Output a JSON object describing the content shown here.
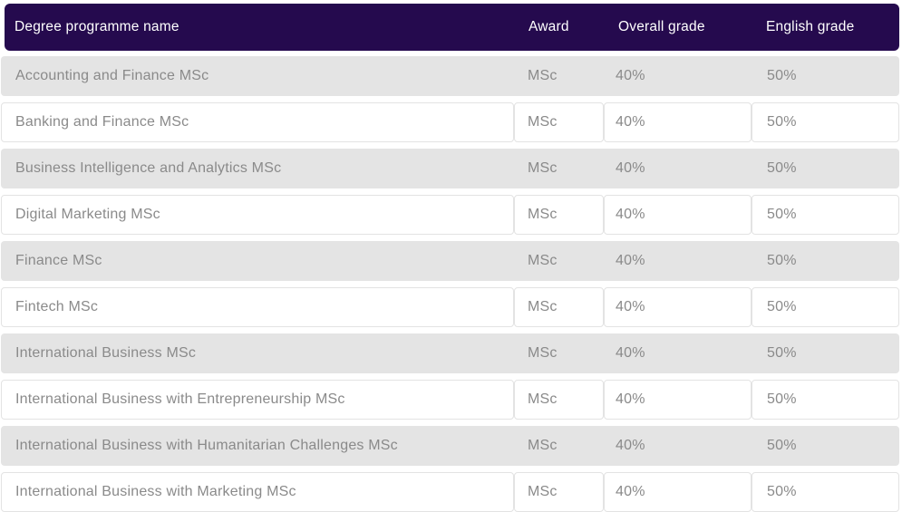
{
  "header": {
    "columns": {
      "programme": "Degree programme name",
      "award": "Award",
      "overall_grade": "Overall grade",
      "english_grade": "English grade"
    }
  },
  "rows": [
    {
      "programme": "Accounting and Finance MSc",
      "award": "MSc",
      "overall_grade": "40%",
      "english_grade": "50%"
    },
    {
      "programme": "Banking and Finance MSc",
      "award": "MSc",
      "overall_grade": "40%",
      "english_grade": "50%"
    },
    {
      "programme": "Business Intelligence and Analytics MSc",
      "award": "MSc",
      "overall_grade": "40%",
      "english_grade": "50%"
    },
    {
      "programme": "Digital Marketing MSc",
      "award": "MSc",
      "overall_grade": "40%",
      "english_grade": "50%"
    },
    {
      "programme": "Finance MSc",
      "award": "MSc",
      "overall_grade": "40%",
      "english_grade": "50%"
    },
    {
      "programme": "Fintech MSc",
      "award": "MSc",
      "overall_grade": "40%",
      "english_grade": "50%"
    },
    {
      "programme": "International Business MSc",
      "award": "MSc",
      "overall_grade": "40%",
      "english_grade": "50%"
    },
    {
      "programme": "International Business with Entrepreneurship MSc",
      "award": "MSc",
      "overall_grade": "40%",
      "english_grade": "50%"
    },
    {
      "programme": "International Business with Humanitarian Challenges MSc",
      "award": "MSc",
      "overall_grade": "40%",
      "english_grade": "50%"
    },
    {
      "programme": "International Business with Marketing MSc",
      "award": "MSc",
      "overall_grade": "40%",
      "english_grade": "50%"
    }
  ],
  "colors": {
    "header_bg": "#250a4e",
    "header_text": "#ffffff",
    "row_alt_bg": "#e4e4e4",
    "row_text": "#8a8a8a",
    "row_border": "#e3e3e3"
  }
}
